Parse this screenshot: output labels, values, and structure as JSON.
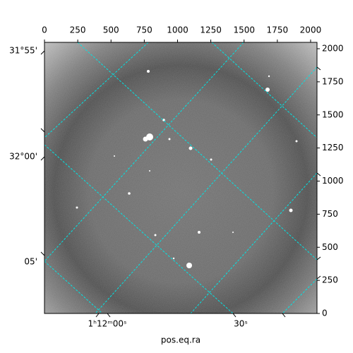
{
  "chart_data": {
    "type": "image",
    "x_label": "pos.eq.ra",
    "xlim": [
      0,
      2048
    ],
    "ylim": [
      0,
      2048
    ],
    "xticks": [
      0,
      250,
      500,
      750,
      1000,
      1250,
      1500,
      1750,
      2000
    ],
    "yticks": [
      0,
      250,
      500,
      750,
      1000,
      1250,
      1500,
      1750,
      2000
    ],
    "dec_tick_labels": [
      "31°55'",
      "32°00'",
      "05'"
    ],
    "ra_tick_labels": [
      "1ʰ12ᵐ00ˢ",
      "30ˢ"
    ],
    "grid_color": "#00e5e5"
  }
}
